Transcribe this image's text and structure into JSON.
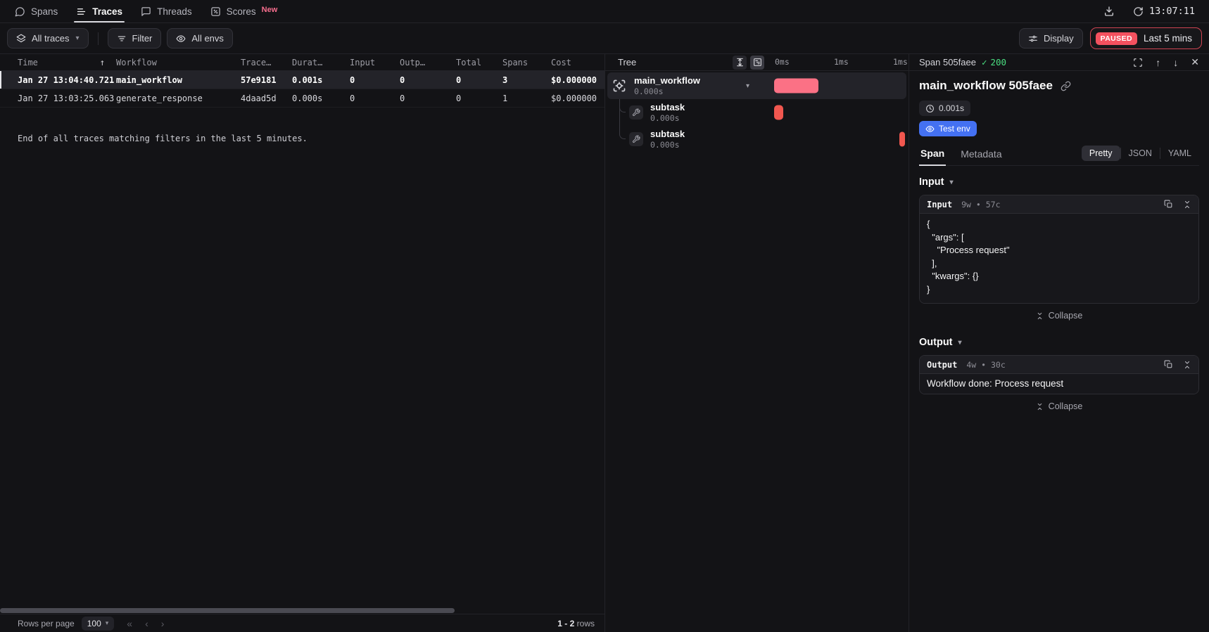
{
  "nav": {
    "tabs": [
      {
        "label": "Spans"
      },
      {
        "label": "Traces"
      },
      {
        "label": "Threads"
      },
      {
        "label": "Scores",
        "badge": "New"
      }
    ],
    "clock": "13:07:11"
  },
  "toolbar": {
    "traces_scope": "All traces",
    "filter": "Filter",
    "envs": "All envs",
    "display": "Display",
    "paused": "PAUSED",
    "range": "Last 5 mins"
  },
  "table": {
    "columns": [
      "Time",
      "Workflow",
      "Trace…",
      "Durat…",
      "Input",
      "Outp…",
      "Total",
      "Spans",
      "Cost"
    ],
    "rows": [
      {
        "time": "Jan 27 13:04:40.721",
        "workflow": "main_workflow",
        "trace": "57e9181",
        "duration": "0.001s",
        "input": "0",
        "output": "0",
        "total": "0",
        "spans": "3",
        "cost": "$0.000000"
      },
      {
        "time": "Jan 27 13:03:25.063",
        "workflow": "generate_response",
        "trace": "4daad5d",
        "duration": "0.000s",
        "input": "0",
        "output": "0",
        "total": "0",
        "spans": "1",
        "cost": "$0.000000"
      }
    ],
    "end_message": "End of all traces matching filters in the last 5 minutes.",
    "footer": {
      "rows_per_page_label": "Rows per page",
      "rows_per_page": "100",
      "range_value": "1 - 2",
      "range_label": "rows"
    }
  },
  "tree": {
    "title": "Tree",
    "ruler": [
      "0ms",
      "1ms",
      "1ms"
    ],
    "nodes": [
      {
        "name": "main_workflow",
        "duration": "0.000s",
        "bar": {
          "left_pct": 0,
          "width_pct": 33,
          "color": "#fb7185"
        }
      },
      {
        "name": "subtask",
        "duration": "0.000s",
        "bar": {
          "left_pct": 0,
          "width_pct": 7,
          "color": "#f1574f"
        }
      },
      {
        "name": "subtask",
        "duration": "0.000s",
        "bar": {
          "left_pct": 92.7,
          "width_pct": 4.4,
          "color": "#f1574f"
        }
      }
    ]
  },
  "detail": {
    "header_title": "Span 505faee",
    "status_code": "200",
    "span_title": "main_workflow 505faee",
    "duration_badge": "0.001s",
    "env_badge": "Test env",
    "tabs": [
      {
        "label": "Span"
      },
      {
        "label": "Metadata"
      }
    ],
    "formats": [
      {
        "label": "Pretty"
      },
      {
        "label": "JSON"
      },
      {
        "label": "YAML"
      }
    ],
    "input": {
      "section_label": "Input",
      "box_label": "Input",
      "meta": "9w • 57c",
      "code": "{\n  \"args\": [\n    \"Process request\"\n  ],\n  \"kwargs\": {}\n}",
      "collapse": "Collapse"
    },
    "output": {
      "section_label": "Output",
      "box_label": "Output",
      "meta": "4w • 30c",
      "text": "Workflow done: Process request",
      "collapse": "Collapse"
    }
  },
  "icons": {
    "sort_asc": "↑",
    "caret_down": "▾",
    "first_page": "«",
    "prev_page": "‹",
    "next_page": "›",
    "check": "✓",
    "arrow_up": "↑",
    "arrow_down": "↓",
    "close": "✕"
  },
  "colors": {
    "root_span_bar": "#fb7185",
    "subtask_bar": "#f1574f",
    "paused_red": "#f4515f",
    "env_blue": "#4471f2",
    "status_green": "#4ade80",
    "new_badge_pink": "#f76e8e"
  }
}
